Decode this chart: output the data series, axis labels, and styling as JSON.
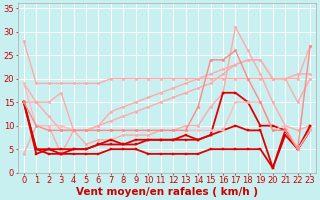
{
  "title": "",
  "xlabel": "Vent moyen/en rafales ( km/h )",
  "ylabel": "",
  "xlim": [
    -0.5,
    23.5
  ],
  "ylim": [
    0,
    36
  ],
  "yticks": [
    0,
    5,
    10,
    15,
    20,
    25,
    30,
    35
  ],
  "xticks": [
    0,
    1,
    2,
    3,
    4,
    5,
    6,
    7,
    8,
    9,
    10,
    11,
    12,
    13,
    14,
    15,
    16,
    17,
    18,
    19,
    20,
    21,
    22,
    23
  ],
  "background_color": "#c8f0f0",
  "grid_color": "#ffffff",
  "lines": [
    {
      "x": [
        0,
        1,
        2,
        3,
        4,
        5,
        6,
        7,
        8,
        9,
        10,
        11,
        12,
        13,
        14,
        15,
        16,
        17,
        18,
        19,
        20,
        21,
        22,
        23
      ],
      "y": [
        28,
        19,
        19,
        19,
        19,
        19,
        19,
        20,
        20,
        20,
        20,
        20,
        20,
        20,
        20,
        20,
        20,
        20,
        20,
        20,
        20,
        20,
        21,
        21
      ],
      "color": "#ffaaaa",
      "lw": 1.0,
      "marker": "o",
      "ms": 1.8
    },
    {
      "x": [
        0,
        1,
        2,
        3,
        4,
        5,
        6,
        7,
        8,
        9,
        10,
        11,
        12,
        13,
        14,
        15,
        16,
        17,
        18,
        19,
        20,
        21,
        22,
        23
      ],
      "y": [
        19,
        15,
        15,
        17,
        9,
        9,
        10,
        13,
        14,
        15,
        16,
        17,
        18,
        19,
        20,
        21,
        22,
        23,
        24,
        24,
        20,
        20,
        20,
        27
      ],
      "color": "#ffaaaa",
      "lw": 1.0,
      "marker": "o",
      "ms": 1.8
    },
    {
      "x": [
        0,
        1,
        2,
        3,
        4,
        5,
        6,
        7,
        8,
        9,
        10,
        11,
        12,
        13,
        14,
        15,
        16,
        17,
        18,
        19,
        20,
        21,
        22,
        23
      ],
      "y": [
        15,
        15,
        12,
        9,
        9,
        9,
        10,
        11,
        12,
        13,
        14,
        15,
        16,
        17,
        18,
        19,
        21,
        23,
        24,
        24,
        20,
        20,
        15,
        20
      ],
      "color": "#ffaaaa",
      "lw": 1.0,
      "marker": "o",
      "ms": 1.8
    },
    {
      "x": [
        0,
        1,
        2,
        3,
        4,
        5,
        6,
        7,
        8,
        9,
        10,
        11,
        12,
        13,
        14,
        15,
        16,
        17,
        18,
        19,
        20,
        21,
        22,
        23
      ],
      "y": [
        4,
        10,
        10,
        4,
        9,
        6,
        7,
        7,
        8,
        8,
        8,
        9,
        9,
        10,
        10,
        14,
        17,
        31,
        26,
        21,
        15,
        10,
        9,
        10
      ],
      "color": "#ffaaaa",
      "lw": 1.0,
      "marker": "o",
      "ms": 1.8
    },
    {
      "x": [
        0,
        1,
        2,
        3,
        4,
        5,
        6,
        7,
        8,
        9,
        10,
        11,
        12,
        13,
        14,
        15,
        16,
        17,
        18,
        19,
        20,
        21,
        22,
        23
      ],
      "y": [
        15,
        4,
        5,
        4,
        5,
        5,
        6,
        7,
        6,
        6,
        7,
        7,
        7,
        8,
        7,
        8,
        17,
        17,
        15,
        10,
        10,
        9,
        5,
        9
      ],
      "color": "#dd0000",
      "lw": 1.3,
      "marker": "s",
      "ms": 2.0
    },
    {
      "x": [
        0,
        1,
        2,
        3,
        4,
        5,
        6,
        7,
        8,
        9,
        10,
        11,
        12,
        13,
        14,
        15,
        16,
        17,
        18,
        19,
        20,
        21,
        22,
        23
      ],
      "y": [
        15,
        5,
        5,
        5,
        5,
        5,
        6,
        6,
        6,
        7,
        7,
        7,
        7,
        7,
        7,
        8,
        9,
        10,
        9,
        9,
        1,
        9,
        5,
        10
      ],
      "color": "#dd0000",
      "lw": 1.3,
      "marker": "s",
      "ms": 2.0
    },
    {
      "x": [
        0,
        1,
        2,
        3,
        4,
        5,
        6,
        7,
        8,
        9,
        10,
        11,
        12,
        13,
        14,
        15,
        16,
        17,
        18,
        19,
        20,
        21,
        22,
        23
      ],
      "y": [
        15,
        5,
        4,
        4,
        4,
        4,
        4,
        5,
        5,
        5,
        4,
        4,
        4,
        4,
        4,
        5,
        5,
        5,
        5,
        5,
        1,
        8,
        5,
        9
      ],
      "color": "#dd0000",
      "lw": 1.3,
      "marker": "s",
      "ms": 2.0
    },
    {
      "x": [
        0,
        1,
        2,
        3,
        4,
        5,
        6,
        7,
        8,
        9,
        10,
        11,
        12,
        13,
        14,
        15,
        16,
        17,
        18,
        19,
        20,
        21,
        22,
        23
      ],
      "y": [
        19,
        10,
        10,
        10,
        9,
        9,
        9,
        9,
        9,
        9,
        9,
        9,
        9,
        9,
        9,
        9,
        9,
        15,
        15,
        15,
        9,
        10,
        5,
        9
      ],
      "color": "#ffbbbb",
      "lw": 1.0,
      "marker": "o",
      "ms": 1.8
    },
    {
      "x": [
        0,
        1,
        2,
        3,
        4,
        5,
        6,
        7,
        8,
        9,
        10,
        11,
        12,
        13,
        14,
        15,
        16,
        17,
        18,
        19,
        20,
        21,
        22,
        23
      ],
      "y": [
        15,
        10,
        9,
        9,
        9,
        9,
        9,
        9,
        9,
        9,
        9,
        9,
        9,
        9,
        14,
        24,
        24,
        26,
        20,
        15,
        9,
        9,
        5,
        27
      ],
      "color": "#ff8888",
      "lw": 1.0,
      "marker": "o",
      "ms": 1.8
    }
  ],
  "xlabel_color": "#cc0000",
  "tick_color": "#cc0000",
  "xlabel_fontsize": 7.5,
  "tick_fontsize": 6.0
}
